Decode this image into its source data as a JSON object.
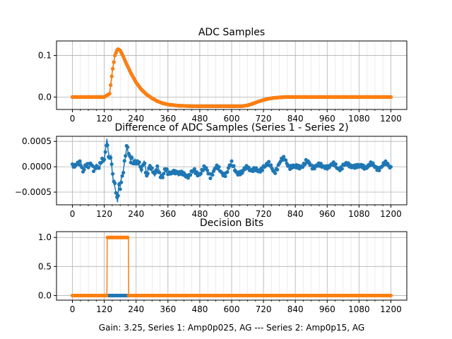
{
  "figure": {
    "footer": "Gain: 3.25, Series 1: Amp0p025, AG --- Series 2: Amp0p15, AG"
  },
  "colors": {
    "series1": "#1f77b4",
    "series2": "#ff7f0e",
    "grid": "#b0b0b0",
    "axes": "#000000"
  },
  "chart_data": [
    {
      "type": "line",
      "title": "ADC Samples",
      "xlabel": "",
      "ylabel": "",
      "xlim": [
        -60,
        1260
      ],
      "ylim": [
        -0.03,
        0.135
      ],
      "xticks": [
        0,
        120,
        240,
        360,
        480,
        600,
        720,
        840,
        960,
        1080,
        1200
      ],
      "xtick_labels": [
        "0",
        "120",
        "240",
        "360",
        "480",
        "600",
        "720",
        "840",
        "960",
        "1080",
        "1200"
      ],
      "yticks": [
        0.0,
        0.1
      ],
      "ytick_labels": [
        "0.0",
        "0.1"
      ],
      "grid": true,
      "series": [
        {
          "name": "Series 1",
          "x": [
            0,
            100,
            120,
            140,
            150,
            160,
            170,
            180,
            190,
            200,
            220,
            240,
            260,
            280,
            300,
            320,
            340,
            360,
            400,
            450,
            500,
            550,
            600,
            640,
            660,
            680,
            700,
            720,
            740,
            760,
            780,
            800,
            840,
            900,
            1000,
            1100,
            1200
          ],
          "values": [
            0,
            0,
            0,
            0.008,
            0.06,
            0.1,
            0.116,
            0.112,
            0.1,
            0.085,
            0.058,
            0.035,
            0.018,
            0.006,
            -0.003,
            -0.01,
            -0.015,
            -0.018,
            -0.021,
            -0.022,
            -0.022,
            -0.022,
            -0.022,
            -0.022,
            -0.02,
            -0.016,
            -0.011,
            -0.007,
            -0.004,
            -0.002,
            -0.001,
            0,
            0,
            0,
            0,
            0,
            0
          ]
        },
        {
          "name": "Series 2",
          "x": [
            0,
            100,
            120,
            140,
            150,
            160,
            170,
            180,
            190,
            200,
            220,
            240,
            260,
            280,
            300,
            320,
            340,
            360,
            400,
            450,
            500,
            550,
            600,
            640,
            660,
            680,
            700,
            720,
            740,
            760,
            780,
            800,
            840,
            900,
            1000,
            1100,
            1200
          ],
          "values": [
            0,
            0,
            0,
            0.008,
            0.06,
            0.1,
            0.116,
            0.112,
            0.1,
            0.085,
            0.058,
            0.035,
            0.018,
            0.006,
            -0.003,
            -0.01,
            -0.015,
            -0.018,
            -0.021,
            -0.022,
            -0.022,
            -0.022,
            -0.022,
            -0.022,
            -0.02,
            -0.016,
            -0.011,
            -0.007,
            -0.004,
            -0.002,
            -0.001,
            0,
            0,
            0,
            0,
            0,
            0
          ]
        }
      ]
    },
    {
      "type": "line",
      "title": "Difference of ADC Samples (Series 1 - Series 2)",
      "xlabel": "",
      "ylabel": "",
      "xlim": [
        -60,
        1260
      ],
      "ylim": [
        -0.00075,
        0.0006
      ],
      "xticks": [
        0,
        120,
        240,
        360,
        480,
        600,
        720,
        840,
        960,
        1080,
        1200
      ],
      "xtick_labels": [
        "0",
        "120",
        "240",
        "360",
        "480",
        "600",
        "720",
        "840",
        "960",
        "1080",
        "1200"
      ],
      "yticks": [
        -0.0005,
        0.0,
        0.0005
      ],
      "ytick_labels": [
        "−0.0005",
        "0.0000",
        "0.0005"
      ],
      "grid": true,
      "series": [
        {
          "name": "Series 1 - Series 2",
          "x": [
            0,
            10,
            20,
            30,
            40,
            50,
            60,
            70,
            80,
            90,
            100,
            110,
            120,
            125,
            130,
            135,
            140,
            145,
            150,
            155,
            160,
            165,
            170,
            175,
            180,
            185,
            190,
            195,
            200,
            205,
            210,
            215,
            220,
            225,
            230,
            235,
            240,
            250,
            260,
            270,
            280,
            290,
            300,
            310,
            320,
            330,
            340,
            350,
            360,
            380,
            400,
            420,
            440,
            460,
            480,
            500,
            520,
            540,
            560,
            580,
            600,
            620,
            640,
            660,
            680,
            700,
            720,
            740,
            760,
            780,
            800,
            820,
            840,
            860,
            880,
            900,
            920,
            940,
            960,
            980,
            1000,
            1020,
            1040,
            1060,
            1080,
            1100,
            1120,
            1140,
            1160,
            1180,
            1200
          ],
          "values": [
            2e-05,
            -3e-05,
            4e-05,
            0.00012,
            -5e-05,
            3e-05,
            -4e-05,
            6e-05,
            -2e-05,
            5e-05,
            -3e-05,
            8e-05,
            0.00012,
            0.00035,
            0.00055,
            0.0003,
            0.00018,
            0.00022,
            -0.0001,
            -0.0003,
            -0.0004,
            -0.00055,
            -0.0007,
            -0.0003,
            -0.0004,
            -0.0002,
            -0.00015,
            5e-05,
            0.0002,
            0.0004,
            0.00028,
            0.00018,
            0.00012,
            0.0002,
            8e-05,
            0.00015,
            0.0001,
            5e-05,
            -0.0001,
            0.00012,
            -0.00015,
            3e-05,
            -0.0001,
            -0.00018,
            2e-05,
            -0.00012,
            -0.0002,
            -8e-05,
            -0.00015,
            -5e-05,
            -0.00018,
            -0.0001,
            -0.0002,
            -8e-05,
            -0.00012,
            -5e-05,
            -0.00015,
            -3e-05,
            -0.0001,
            -0.00012,
            4e-05,
            -8e-05,
            -0.00015,
            2e-05,
            -6e-05,
            -0.00012,
            4e-05,
            2e-05,
            -8e-05,
            6e-05,
            0.00015,
            2e-05,
            -4e-05,
            3e-05,
            8e-05,
            1e-05,
            5e-05,
            -3e-05,
            4e-05,
            2e-05,
            -2e-05,
            3e-05,
            1e-05,
            5e-05,
            -3e-05,
            2e-05,
            4e-05,
            -2e-05,
            1e-05,
            3e-05,
            2e-05
          ]
        }
      ]
    },
    {
      "type": "line",
      "title": "Decision Bits",
      "xlabel": "Gain: 3.25, Series 1: Amp0p025, AG --- Series 2: Amp0p15, AG",
      "ylabel": "",
      "xlim": [
        -60,
        1260
      ],
      "ylim": [
        -0.08,
        1.1
      ],
      "xticks": [
        0,
        120,
        240,
        360,
        480,
        600,
        720,
        840,
        960,
        1080,
        1200
      ],
      "xtick_labels": [
        "0",
        "120",
        "240",
        "360",
        "480",
        "600",
        "720",
        "840",
        "960",
        "1080",
        "1200"
      ],
      "yticks": [
        0.0,
        0.5,
        1.0
      ],
      "ytick_labels": [
        "0.0",
        "0.5",
        "1.0"
      ],
      "grid": true,
      "series": [
        {
          "name": "Series 1",
          "x": [
            0,
            134,
            210,
            1200
          ],
          "values": [
            0,
            0,
            0,
            0
          ]
        },
        {
          "name": "Series 2",
          "x": [
            0,
            130,
            131,
            211,
            212,
            1200
          ],
          "values": [
            0,
            0,
            1,
            1,
            0,
            0
          ]
        }
      ]
    }
  ]
}
